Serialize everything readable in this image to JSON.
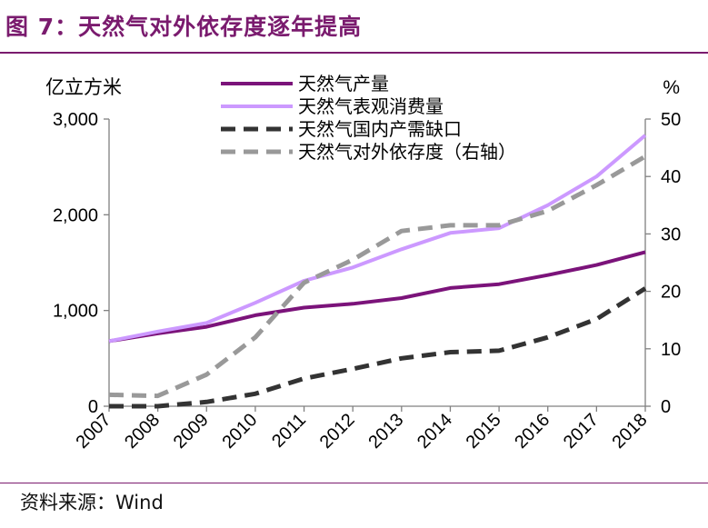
{
  "figure": {
    "title": "图 7：天然气对外依存度逐年提高",
    "source": "资料来源：Wind",
    "accent_color": "#7a1b6e"
  },
  "chart_data": {
    "type": "line",
    "title": "",
    "categories": [
      "2007",
      "2008",
      "2009",
      "2010",
      "2011",
      "2012",
      "2013",
      "2014",
      "2015",
      "2016",
      "2017",
      "2018"
    ],
    "y_left": {
      "unit": "亿立方米",
      "ylim": [
        0,
        3000
      ],
      "ticks": [
        0,
        1000,
        2000,
        3000
      ],
      "tick_labels": [
        "0",
        "1,000",
        "2,000",
        "3,000"
      ]
    },
    "y_right": {
      "unit": "%",
      "ylim": [
        0,
        50
      ],
      "ticks": [
        0,
        10,
        20,
        30,
        40,
        50
      ],
      "tick_labels": [
        "0",
        "10",
        "20",
        "30",
        "40",
        "50"
      ]
    },
    "grid": false,
    "legend": "top-center",
    "series": [
      {
        "name": "天然气产量",
        "axis": "left",
        "style": "solid",
        "color": "#7b137a",
        "values": [
          680,
          760,
          830,
          950,
          1030,
          1070,
          1130,
          1235,
          1275,
          1370,
          1475,
          1610
        ]
      },
      {
        "name": "天然气表观消费量",
        "axis": "left",
        "style": "solid",
        "color": "#cc99ff",
        "values": [
          680,
          780,
          870,
          1080,
          1310,
          1450,
          1640,
          1810,
          1860,
          2100,
          2400,
          2830
        ]
      },
      {
        "name": "天然气国内产需缺口",
        "axis": "left",
        "style": "dashed",
        "color": "#333333",
        "values": [
          0,
          0,
          45,
          130,
          290,
          390,
          500,
          565,
          580,
          720,
          910,
          1230
        ]
      },
      {
        "name": "天然气对外依存度（右轴）",
        "axis": "right",
        "style": "dashed",
        "color": "#999999",
        "values": [
          2,
          1.8,
          5.5,
          12,
          21.5,
          25.5,
          30.5,
          31.5,
          31.5,
          34,
          38.5,
          43.5
        ]
      }
    ]
  }
}
